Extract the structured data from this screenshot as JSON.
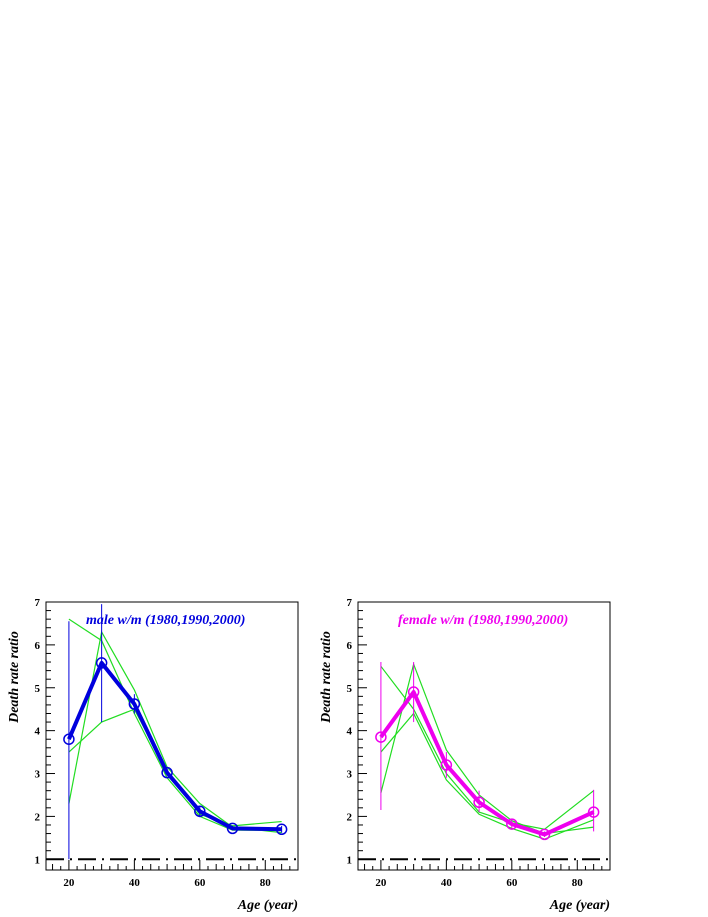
{
  "chart_data": [
    {
      "type": "line",
      "title": "male w/m (1980,1990,2000)",
      "title_color": "#0000dd",
      "xlabel": "Age (year)",
      "ylabel": "Death rate ratio",
      "xlim": [
        13,
        90
      ],
      "ylim": [
        0.75,
        7
      ],
      "xticks": [
        20,
        40,
        60,
        80
      ],
      "yticks": [
        1,
        2,
        3,
        4,
        5,
        6,
        7
      ],
      "x": [
        20,
        30,
        40,
        50,
        60,
        70,
        85
      ],
      "series": [
        {
          "role": "main",
          "color": "#0000dd",
          "values": [
            3.8,
            5.58,
            4.62,
            3.02,
            2.12,
            1.72,
            1.7
          ],
          "err_low": [
            1.0,
            4.2,
            4.4,
            2.95,
            1.98,
            1.68,
            1.62
          ],
          "err_high": [
            6.55,
            6.95,
            4.85,
            3.1,
            2.25,
            1.78,
            1.78
          ]
        },
        {
          "role": "year",
          "color": "#22dd22",
          "values": [
            2.3,
            6.3,
            4.95,
            3.15,
            2.3,
            1.75,
            1.62
          ]
        },
        {
          "role": "year",
          "color": "#22dd22",
          "values": [
            6.6,
            6.1,
            4.4,
            2.9,
            2.0,
            1.68,
            1.67
          ]
        },
        {
          "role": "year",
          "color": "#22dd22",
          "values": [
            3.5,
            4.2,
            4.5,
            3.05,
            2.05,
            1.78,
            1.88
          ]
        }
      ],
      "reference_line": 1
    },
    {
      "type": "line",
      "title": "female w/m (1980,1990,2000)",
      "title_color": "#ee00ee",
      "xlabel": "Age (year)",
      "ylabel": "Death rate ratio",
      "xlim": [
        13,
        90
      ],
      "ylim": [
        0.75,
        7
      ],
      "xticks": [
        20,
        40,
        60,
        80
      ],
      "yticks": [
        1,
        2,
        3,
        4,
        5,
        6,
        7
      ],
      "x": [
        20,
        30,
        40,
        50,
        60,
        70,
        85
      ],
      "series": [
        {
          "role": "main",
          "color": "#ee00ee",
          "values": [
            3.85,
            4.9,
            3.2,
            2.33,
            1.82,
            1.58,
            2.1
          ],
          "err_low": [
            2.15,
            4.2,
            2.9,
            2.1,
            1.72,
            1.52,
            1.65
          ],
          "err_high": [
            5.6,
            5.6,
            3.5,
            2.6,
            1.92,
            1.65,
            2.62
          ]
        },
        {
          "role": "year",
          "color": "#22dd22",
          "values": [
            5.5,
            4.5,
            3.0,
            2.1,
            1.85,
            1.7,
            2.6
          ]
        },
        {
          "role": "year",
          "color": "#22dd22",
          "values": [
            2.55,
            5.55,
            3.55,
            2.5,
            1.9,
            1.6,
            1.75
          ]
        },
        {
          "role": "year",
          "color": "#22dd22",
          "values": [
            3.5,
            4.4,
            2.85,
            2.05,
            1.72,
            1.47,
            1.92
          ]
        }
      ],
      "reference_line": 1
    }
  ]
}
